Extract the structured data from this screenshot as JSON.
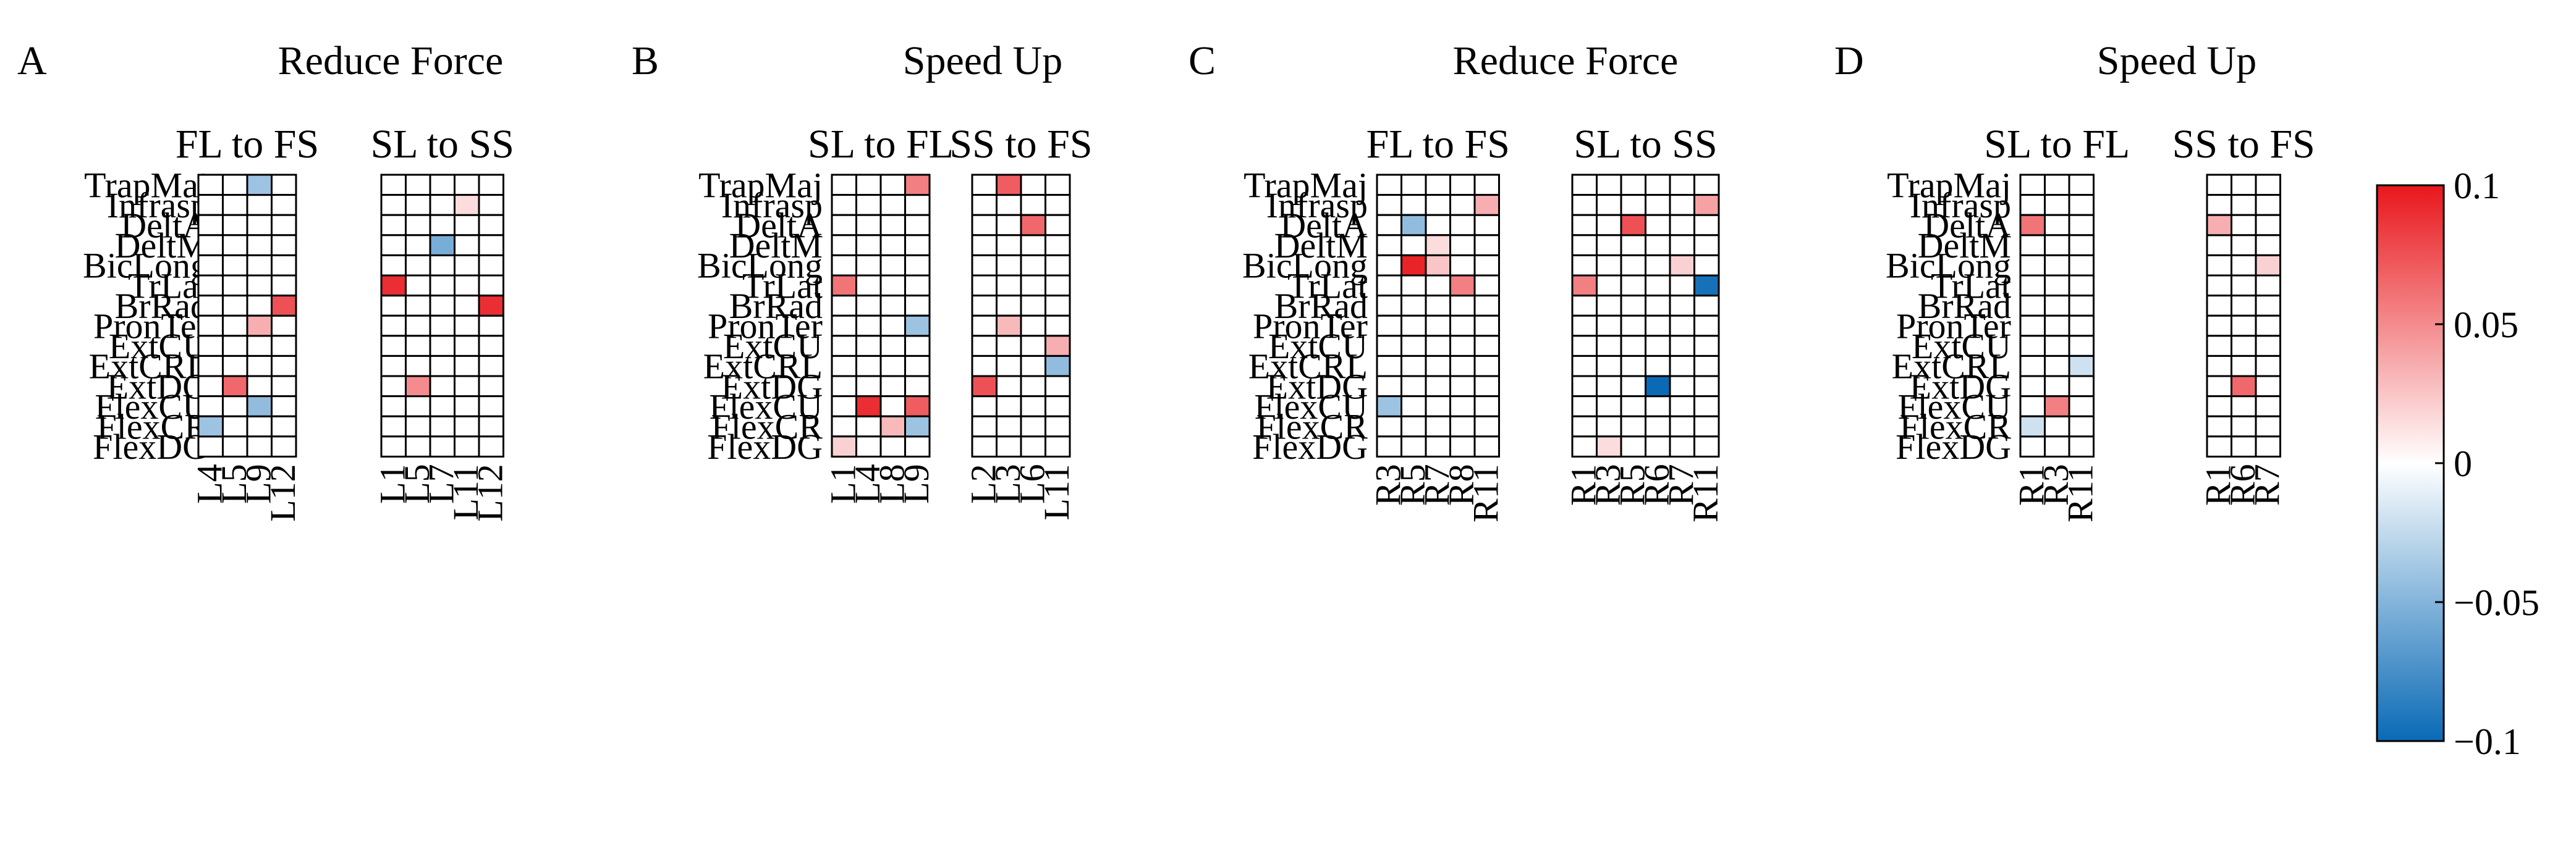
{
  "colors": {
    "max": "#e8171c",
    "mid": "#ffffff",
    "min": "#0a6ab6",
    "grid": "#000000"
  },
  "chart_data": {
    "type": "heatmap",
    "muscles": [
      "TrapMaj",
      "Infrasp",
      "DeltA",
      "DeltM",
      "BicLong",
      "TrLat",
      "BrRad",
      "PronTer",
      "ExtCU",
      "ExtCRL",
      "ExtDG",
      "FlexCU",
      "FlexCR",
      "FlexDG"
    ],
    "colorbar": {
      "range": [
        -0.1,
        0.1
      ],
      "ticks": [
        "0.1",
        "0.05",
        "0",
        "−0.05",
        "−0.1"
      ],
      "tick_values": [
        0.1,
        0.05,
        0,
        -0.05,
        -0.1
      ]
    },
    "panels": [
      {
        "letter": "A",
        "title": "Reduce Force",
        "subplots": [
          {
            "title": "FL to FS",
            "columns": [
              "L4",
              "L5",
              "L9",
              "L12"
            ],
            "cells": [
              {
                "muscle": "TrapMaj",
                "column": "L9",
                "value": -0.04
              },
              {
                "muscle": "BrRad",
                "column": "L12",
                "value": 0.075
              },
              {
                "muscle": "PronTer",
                "column": "L9",
                "value": 0.035
              },
              {
                "muscle": "ExtDG",
                "column": "L5",
                "value": 0.065
              },
              {
                "muscle": "FlexCU",
                "column": "L9",
                "value": -0.045
              },
              {
                "muscle": "FlexCR",
                "column": "L4",
                "value": -0.04
              }
            ]
          },
          {
            "title": "SL to SS",
            "columns": [
              "L1",
              "L5",
              "L7",
              "L11",
              "L12"
            ],
            "cells": [
              {
                "muscle": "Infrasp",
                "column": "L11",
                "value": 0.015
              },
              {
                "muscle": "DeltM",
                "column": "L7",
                "value": -0.055
              },
              {
                "muscle": "TrLat",
                "column": "L1",
                "value": 0.09
              },
              {
                "muscle": "BrRad",
                "column": "L12",
                "value": 0.09
              },
              {
                "muscle": "ExtDG",
                "column": "L5",
                "value": 0.05
              }
            ]
          }
        ]
      },
      {
        "letter": "B",
        "title": "Speed Up",
        "subplots": [
          {
            "title": "SL to FL",
            "columns": [
              "L1",
              "L4",
              "L8",
              "L9"
            ],
            "cells": [
              {
                "muscle": "TrapMaj",
                "column": "L9",
                "value": 0.055
              },
              {
                "muscle": "TrLat",
                "column": "L1",
                "value": 0.06
              },
              {
                "muscle": "PronTer",
                "column": "L9",
                "value": -0.04
              },
              {
                "muscle": "FlexCU",
                "column": "L4",
                "value": 0.09
              },
              {
                "muscle": "FlexCU",
                "column": "L9",
                "value": 0.07
              },
              {
                "muscle": "FlexCR",
                "column": "L8",
                "value": 0.03
              },
              {
                "muscle": "FlexCR",
                "column": "L9",
                "value": -0.04
              },
              {
                "muscle": "FlexDG",
                "column": "L1",
                "value": 0.02
              }
            ]
          },
          {
            "title": "SS to FS",
            "columns": [
              "L2",
              "L3",
              "L6",
              "L11"
            ],
            "cells": [
              {
                "muscle": "TrapMaj",
                "column": "L3",
                "value": 0.07
              },
              {
                "muscle": "DeltA",
                "column": "L6",
                "value": 0.065
              },
              {
                "muscle": "PronTer",
                "column": "L3",
                "value": 0.03
              },
              {
                "muscle": "ExtCU",
                "column": "L11",
                "value": 0.035
              },
              {
                "muscle": "ExtCRL",
                "column": "L11",
                "value": -0.045
              },
              {
                "muscle": "ExtDG",
                "column": "L2",
                "value": 0.075
              }
            ]
          }
        ]
      },
      {
        "letter": "C",
        "title": "Reduce Force",
        "subplots": [
          {
            "title": "FL to FS",
            "columns": [
              "R3",
              "R5",
              "R7",
              "R8",
              "R11"
            ],
            "cells": [
              {
                "muscle": "Infrasp",
                "column": "R11",
                "value": 0.035
              },
              {
                "muscle": "DeltA",
                "column": "R5",
                "value": -0.045
              },
              {
                "muscle": "DeltM",
                "column": "R7",
                "value": 0.015
              },
              {
                "muscle": "BicLong",
                "column": "R5",
                "value": 0.095
              },
              {
                "muscle": "BicLong",
                "column": "R7",
                "value": 0.025
              },
              {
                "muscle": "TrLat",
                "column": "R8",
                "value": 0.055
              },
              {
                "muscle": "FlexCU",
                "column": "R3",
                "value": -0.04
              }
            ]
          },
          {
            "title": "SL to SS",
            "columns": [
              "R1",
              "R3",
              "R5",
              "R6",
              "R7",
              "R11"
            ],
            "cells": [
              {
                "muscle": "Infrasp",
                "column": "R11",
                "value": 0.04
              },
              {
                "muscle": "DeltA",
                "column": "R5",
                "value": 0.075
              },
              {
                "muscle": "BicLong",
                "column": "R7",
                "value": 0.02
              },
              {
                "muscle": "TrLat",
                "column": "R1",
                "value": 0.055
              },
              {
                "muscle": "TrLat",
                "column": "R11",
                "value": -0.095
              },
              {
                "muscle": "ExtDG",
                "column": "R6",
                "value": -0.1
              },
              {
                "muscle": "FlexDG",
                "column": "R3",
                "value": 0.015
              }
            ]
          }
        ]
      },
      {
        "letter": "D",
        "title": "Speed Up",
        "subplots": [
          {
            "title": "SL to FL",
            "columns": [
              "R1",
              "R3",
              "R11"
            ],
            "cells": [
              {
                "muscle": "DeltA",
                "column": "R1",
                "value": 0.06
              },
              {
                "muscle": "ExtCRL",
                "column": "R11",
                "value": -0.02
              },
              {
                "muscle": "FlexCU",
                "column": "R3",
                "value": 0.055
              },
              {
                "muscle": "FlexCR",
                "column": "R1",
                "value": -0.02
              }
            ]
          },
          {
            "title": "SS to FS",
            "columns": [
              "R1",
              "R6",
              "R7"
            ],
            "cells": [
              {
                "muscle": "DeltA",
                "column": "R1",
                "value": 0.035
              },
              {
                "muscle": "BicLong",
                "column": "R7",
                "value": 0.02
              },
              {
                "muscle": "ExtDG",
                "column": "R6",
                "value": 0.065
              }
            ]
          }
        ]
      }
    ]
  }
}
